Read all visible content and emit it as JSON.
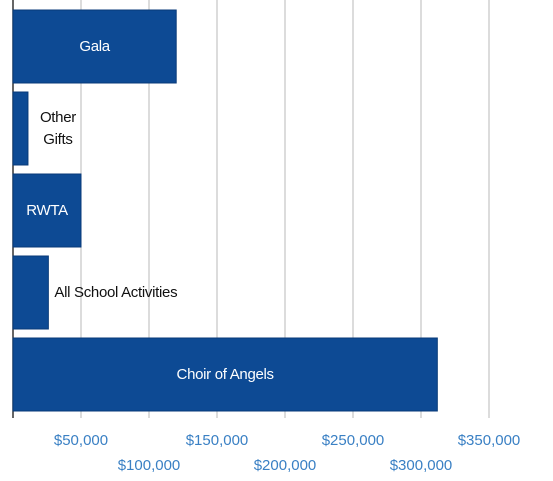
{
  "chart_data": {
    "type": "bar",
    "orientation": "horizontal",
    "categories": [
      "Gala",
      "Other Gifts",
      "RWTA",
      "All School Activities",
      "Choir of Angels"
    ],
    "values": [
      120000,
      11000,
      50000,
      26000,
      312000
    ],
    "color": "#0d4a94",
    "xlim": [
      0,
      350000
    ],
    "xticks": [
      {
        "value": 50000,
        "label": "$50,000"
      },
      {
        "value": 100000,
        "label": "$100,000"
      },
      {
        "value": 150000,
        "label": "$150,000"
      },
      {
        "value": 200000,
        "label": "$200,000"
      },
      {
        "value": 250000,
        "label": "$250,000"
      },
      {
        "value": 300000,
        "label": "$300,000"
      },
      {
        "value": 350000,
        "label": "$350,000"
      }
    ],
    "grid": true
  }
}
